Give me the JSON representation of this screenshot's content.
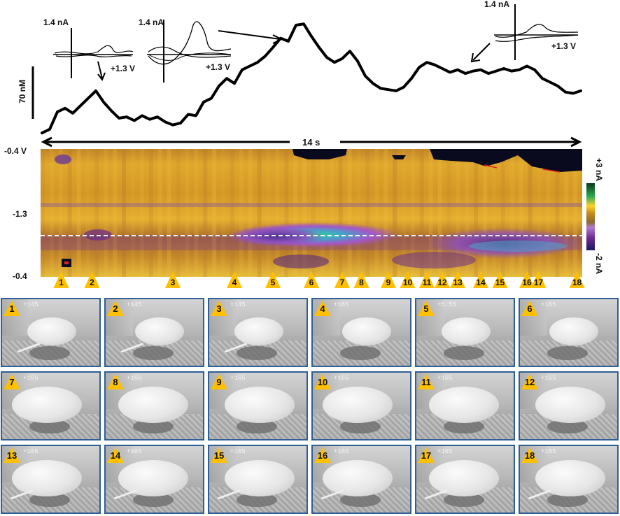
{
  "chart_data": [
    {
      "type": "line",
      "scale_bar_label": "70 nM",
      "time_label": "14 s",
      "x": [
        0,
        0.2,
        0.4,
        0.6,
        0.8,
        1.0,
        1.2,
        1.4,
        1.6,
        1.8,
        2.0,
        2.2,
        2.4,
        2.6,
        2.8,
        3.0,
        3.2,
        3.4,
        3.6,
        3.8,
        4.0,
        4.2,
        4.4,
        4.6,
        4.8,
        5.0,
        5.2,
        5.4,
        5.6,
        5.8,
        6.0,
        6.2,
        6.4,
        6.6,
        6.8,
        7.0,
        7.2,
        7.4,
        7.6,
        7.8,
        8.0,
        8.2,
        8.4,
        8.6,
        8.8,
        9.0,
        9.2,
        9.4,
        9.6,
        9.8,
        10.0,
        10.2,
        10.4,
        10.6,
        10.8,
        11.0,
        11.2,
        11.4,
        11.6,
        11.8,
        12.0,
        12.2,
        12.4,
        12.6,
        12.8,
        13.0,
        13.2,
        13.4,
        13.6,
        13.8,
        14.0
      ],
      "y": [
        2,
        8,
        36,
        42,
        34,
        46,
        58,
        70,
        52,
        38,
        26,
        28,
        22,
        30,
        24,
        28,
        20,
        15,
        18,
        32,
        30,
        52,
        58,
        78,
        90,
        82,
        104,
        110,
        116,
        126,
        140,
        155,
        150,
        176,
        178,
        158,
        140,
        124,
        116,
        122,
        134,
        118,
        94,
        82,
        74,
        72,
        70,
        76,
        90,
        108,
        116,
        112,
        106,
        100,
        104,
        98,
        102,
        104,
        98,
        102,
        106,
        102,
        104,
        110,
        104,
        90,
        84,
        78,
        68,
        66,
        70
      ],
      "ylim": [
        0,
        185
      ],
      "insets": [
        {
          "current_label": "1.4 nA",
          "voltage_label": "+1.3 V"
        },
        {
          "current_label": "1.4 nA",
          "voltage_label": "+1.3 V"
        },
        {
          "current_label": "1.4 nA",
          "voltage_label": "+1.3 V"
        }
      ]
    },
    {
      "type": "heatmap",
      "y_tick_labels": [
        "-0.4 V",
        "-1.3",
        "-0.4"
      ],
      "colorbar_labels": [
        "+3 nA",
        "-2 nA"
      ],
      "colorbar_range_nA": [
        -2,
        3
      ],
      "event_markers": [
        "1",
        "2",
        "3",
        "4",
        "5",
        "6",
        "7",
        "8",
        "9",
        "10",
        "11",
        "12",
        "13",
        "14",
        "15",
        "16",
        "17",
        "18"
      ],
      "event_positions_s": [
        0.5,
        1.3,
        3.4,
        5.0,
        6.0,
        7.0,
        7.8,
        8.3,
        9.0,
        9.5,
        10.0,
        10.4,
        10.8,
        11.4,
        11.9,
        12.6,
        12.9,
        13.9
      ]
    }
  ],
  "frames": [
    "1",
    "2",
    "3",
    "4",
    "5",
    "6",
    "7",
    "8",
    "9",
    "10",
    "11",
    "12",
    "13",
    "14",
    "15",
    "16",
    "17",
    "18"
  ],
  "frame_timestamps": [
    "+145",
    "+145",
    "+145",
    "+165",
    "+5:55",
    "+165",
    "+165",
    "+165",
    "+165",
    "+165",
    "+165",
    "+165",
    "+165",
    "+165",
    "+165",
    "+165",
    "+165",
    "+165"
  ],
  "colors": {
    "trace": "#000000",
    "triangle": "#ffc000",
    "frame_border": "#2f5f96",
    "dashed_line": "#ffffff"
  }
}
